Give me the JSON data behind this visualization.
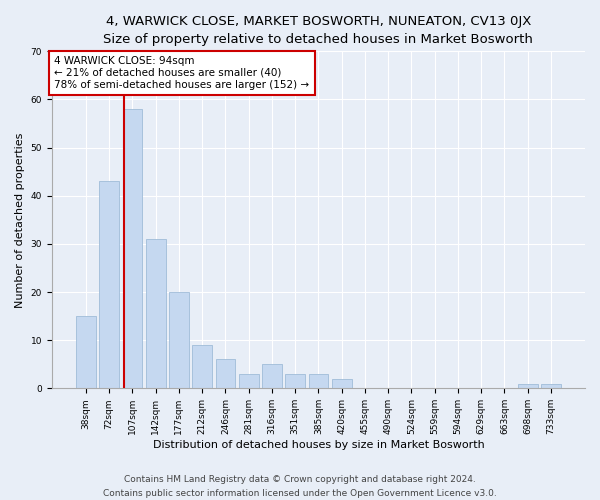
{
  "title": "4, WARWICK CLOSE, MARKET BOSWORTH, NUNEATON, CV13 0JX",
  "subtitle": "Size of property relative to detached houses in Market Bosworth",
  "xlabel": "Distribution of detached houses by size in Market Bosworth",
  "ylabel": "Number of detached properties",
  "categories": [
    "38sqm",
    "72sqm",
    "107sqm",
    "142sqm",
    "177sqm",
    "212sqm",
    "246sqm",
    "281sqm",
    "316sqm",
    "351sqm",
    "385sqm",
    "420sqm",
    "455sqm",
    "490sqm",
    "524sqm",
    "559sqm",
    "594sqm",
    "629sqm",
    "663sqm",
    "698sqm",
    "733sqm"
  ],
  "values": [
    15,
    43,
    58,
    31,
    20,
    9,
    6,
    3,
    5,
    3,
    3,
    2,
    0,
    0,
    0,
    0,
    0,
    0,
    0,
    1,
    1
  ],
  "bar_color": "#c5d8f0",
  "bar_edge_color": "#a0bcd8",
  "vline_color": "#cc0000",
  "annotation_line1": "4 WARWICK CLOSE: 94sqm",
  "annotation_line2": "← 21% of detached houses are smaller (40)",
  "annotation_line3": "78% of semi-detached houses are larger (152) →",
  "annotation_box_color": "#ffffff",
  "annotation_box_edge": "#cc0000",
  "ylim": [
    0,
    70
  ],
  "yticks": [
    0,
    10,
    20,
    30,
    40,
    50,
    60,
    70
  ],
  "footer1": "Contains HM Land Registry data © Crown copyright and database right 2024.",
  "footer2": "Contains public sector information licensed under the Open Government Licence v3.0.",
  "background_color": "#e8eef7",
  "plot_bg_color": "#e8eef7",
  "title_fontsize": 9.5,
  "subtitle_fontsize": 8.5,
  "xlabel_fontsize": 8,
  "ylabel_fontsize": 8,
  "tick_fontsize": 6.5,
  "annotation_fontsize": 7.5,
  "footer_fontsize": 6.5
}
